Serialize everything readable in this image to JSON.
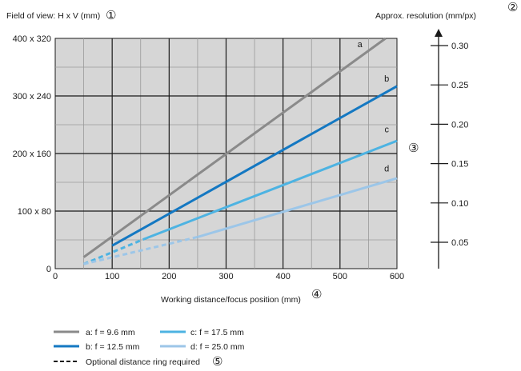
{
  "chart_data": {
    "type": "line",
    "title": "",
    "xlabel": "Working distance/focus position (mm)",
    "ylabel": "Field of view: H x V (mm)",
    "y2label": "Approx. resolution (mm/px)",
    "xlim": [
      0,
      600
    ],
    "ylim": [
      0,
      400
    ],
    "x_ticks": [
      "0",
      "100",
      "200",
      "300",
      "400",
      "500",
      "600"
    ],
    "x_tick_values": [
      0,
      100,
      200,
      300,
      400,
      500,
      600
    ],
    "y_ticks": [
      "0",
      "100 x 80",
      "200 x 160",
      "300 x 240",
      "400 x 320"
    ],
    "y_tick_values": [
      0,
      100,
      200,
      300,
      400
    ],
    "y2_ticks": [
      "0.05",
      "0.10",
      "0.15",
      "0.20",
      "0.25",
      "0.30"
    ],
    "y2_tick_values": [
      0.05,
      0.1,
      0.15,
      0.2,
      0.25,
      0.3
    ],
    "grid": true,
    "markers": {
      "m1": "①",
      "m2": "②",
      "m3": "③",
      "m4": "④",
      "m5": "⑤"
    },
    "series": [
      {
        "id": "a",
        "name": "a: f = 9.6 mm",
        "color": "#8a8a8a",
        "dashed_segment": null,
        "solid_segment": {
          "x": [
            50,
            580
          ],
          "y": [
            20,
            400
          ]
        }
      },
      {
        "id": "b",
        "name": "b: f = 12.5 mm",
        "color": "#1478c2",
        "dashed_segment": null,
        "solid_segment": {
          "x": [
            100,
            600
          ],
          "y": [
            40,
            317
          ]
        }
      },
      {
        "id": "c",
        "name": "c: f = 17.5 mm",
        "color": "#4db3e2",
        "dashed_segment": {
          "x": [
            50,
            160
          ],
          "y": [
            8,
            53
          ]
        },
        "solid_segment": {
          "x": [
            160,
            600
          ],
          "y": [
            53,
            222
          ]
        }
      },
      {
        "id": "d",
        "name": "d: f = 25.0 mm",
        "color": "#9cc6e8",
        "dashed_segment": {
          "x": [
            50,
            250
          ],
          "y": [
            8,
            55
          ]
        },
        "solid_segment": {
          "x": [
            250,
            600
          ],
          "y": [
            55,
            157
          ]
        }
      }
    ],
    "series_letter_labels": [
      {
        "text": "a",
        "x": 535,
        "y": 385
      },
      {
        "text": "b",
        "x": 582,
        "y": 325
      },
      {
        "text": "c",
        "x": 582,
        "y": 237
      },
      {
        "text": "d",
        "x": 582,
        "y": 169
      }
    ],
    "legend": {
      "placement": "bottom-left",
      "dashed_note": "Optional distance ring required"
    }
  }
}
